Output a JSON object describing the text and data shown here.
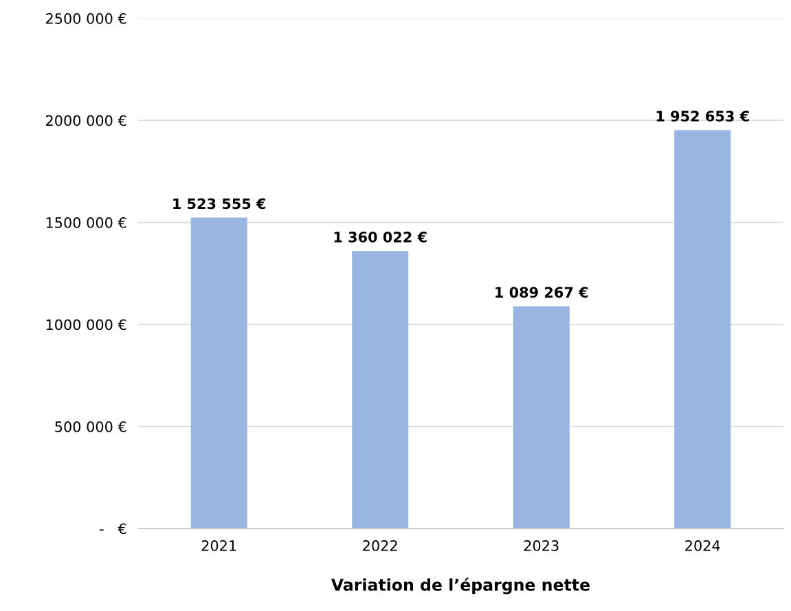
{
  "chart_data": {
    "type": "bar",
    "xlabel": "Variation de l’épargne nette",
    "categories": [
      "2021",
      "2022",
      "2023",
      "2024"
    ],
    "values": [
      1523555,
      1360022,
      1089267,
      1952653
    ],
    "value_labels": [
      "1 523 555 €",
      "1 360 022 €",
      "1 089 267 €",
      "1 952 653 €"
    ],
    "color": "#9bb5e3",
    "ylim": [
      0,
      2500000
    ],
    "yticks": [
      {
        "value": 0,
        "label": "-   €"
      },
      {
        "value": 500000,
        "label": "500 000 €"
      },
      {
        "value": 1000000,
        "label": "1000 000 €"
      },
      {
        "value": 1500000,
        "label": "1500 000 €"
      },
      {
        "value": 2000000,
        "label": "2000 000 €"
      },
      {
        "value": 2500000,
        "label": "2500 000 €"
      }
    ],
    "grid": "y"
  }
}
